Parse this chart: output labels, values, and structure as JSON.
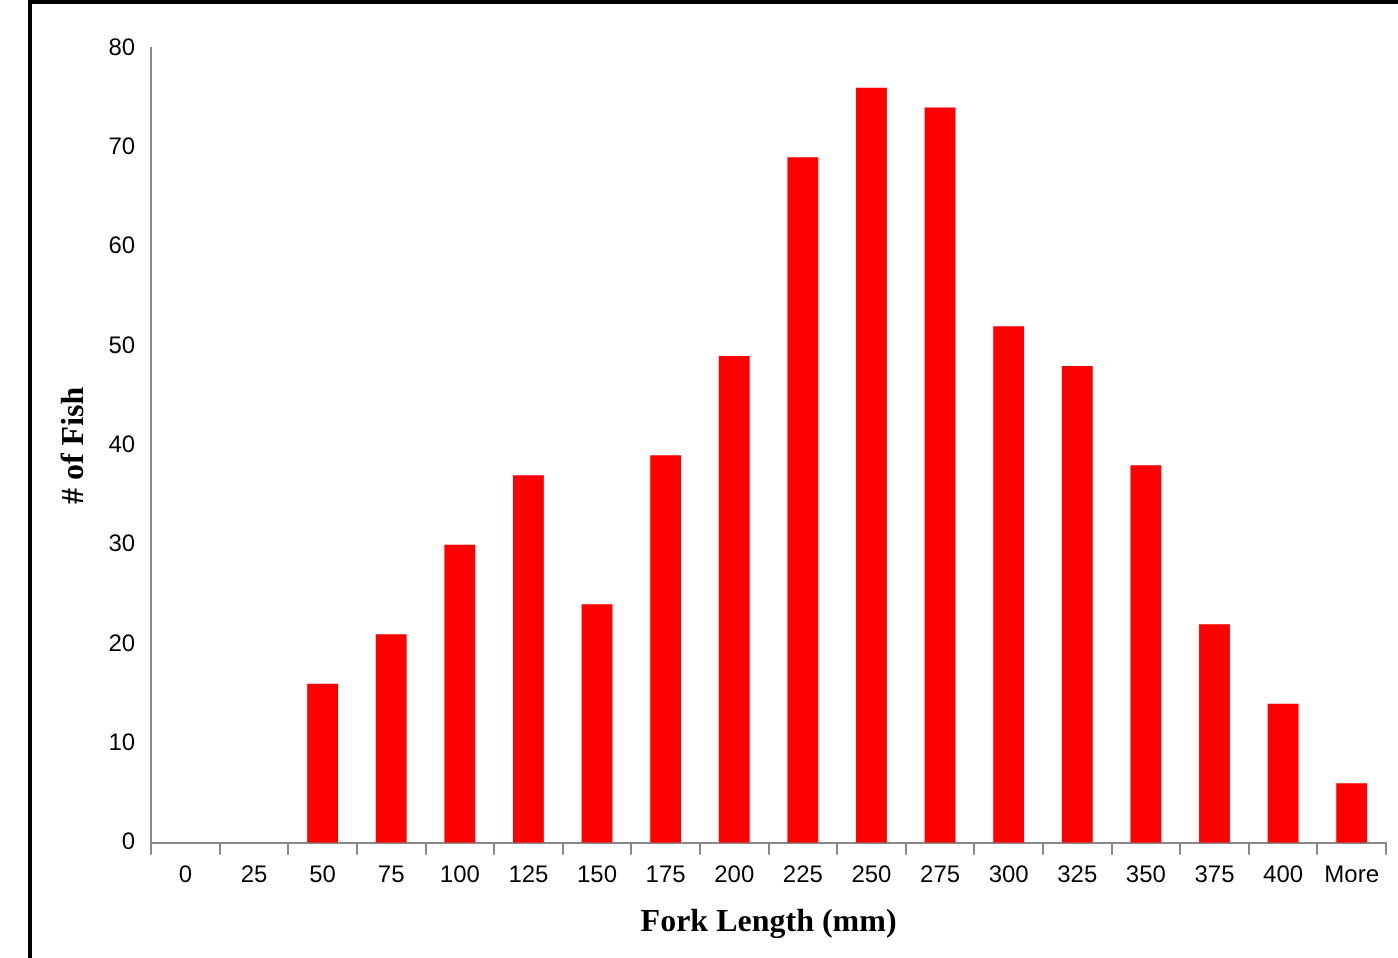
{
  "chart_data": {
    "type": "bar",
    "xlabel": "Fork Length (mm)",
    "ylabel": "# of Fish",
    "categories": [
      "0",
      "25",
      "50",
      "75",
      "100",
      "125",
      "150",
      "175",
      "200",
      "225",
      "250",
      "275",
      "300",
      "325",
      "350",
      "375",
      "400",
      "More"
    ],
    "values": [
      0,
      0,
      16,
      21,
      30,
      37,
      24,
      39,
      49,
      69,
      76,
      74,
      52,
      48,
      38,
      22,
      14,
      6
    ],
    "color": "#ff0000",
    "ylim": [
      0,
      80
    ],
    "yticks": [
      0,
      10,
      20,
      30,
      40,
      50,
      60,
      70,
      80
    ],
    "grid": false,
    "legend": false
  }
}
